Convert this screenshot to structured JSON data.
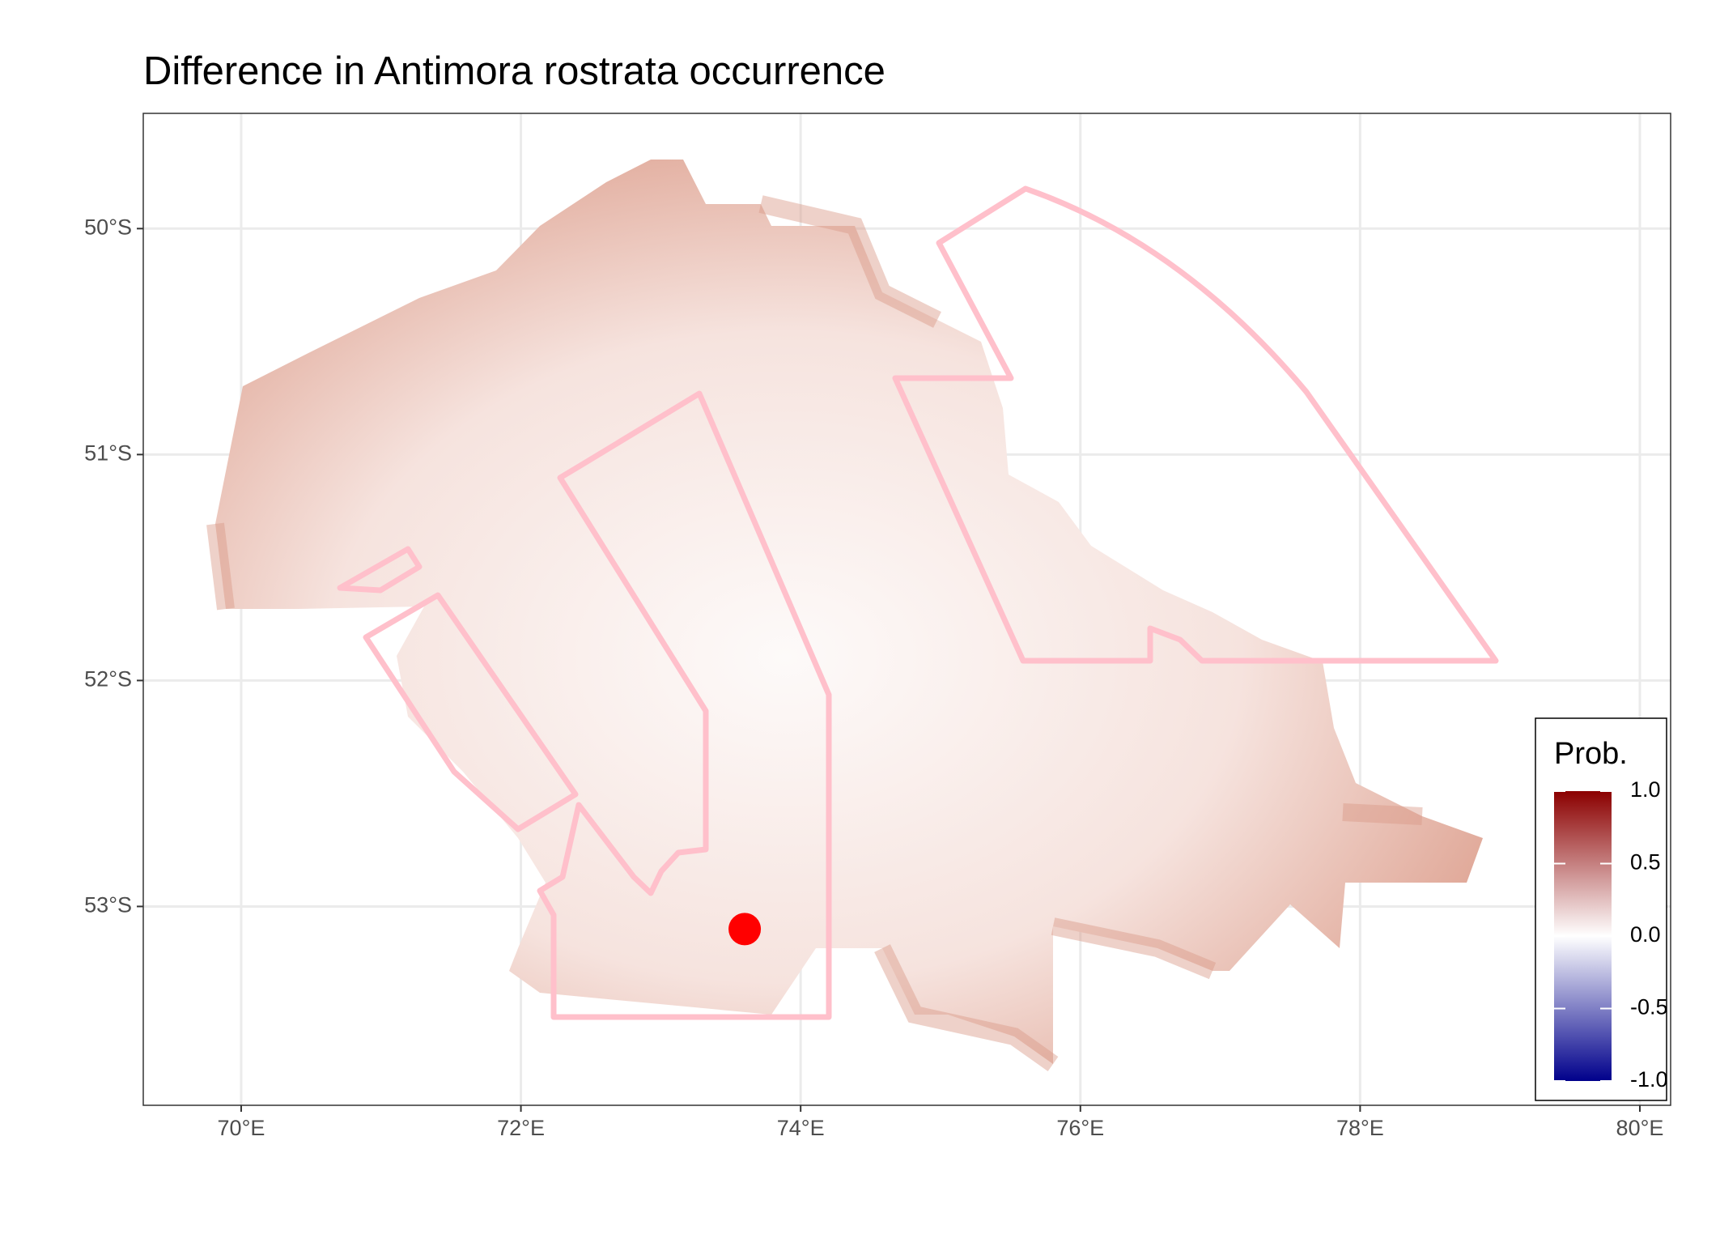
{
  "chart_data": {
    "type": "map",
    "title": "Difference in  Antimora rostrata occurrence",
    "xlim": [
      69.3,
      80.22
    ],
    "ylim": [
      -53.88,
      -49.49
    ],
    "xticks": [
      {
        "value": 70,
        "label": "70°E"
      },
      {
        "value": 72,
        "label": "72°E"
      },
      {
        "value": 74,
        "label": "74°E"
      },
      {
        "value": 76,
        "label": "76°E"
      },
      {
        "value": 78,
        "label": "78°E"
      },
      {
        "value": 80,
        "label": "80°E"
      }
    ],
    "yticks": [
      {
        "value": -50,
        "label": "50°S"
      },
      {
        "value": -51,
        "label": "51°S"
      },
      {
        "value": -52,
        "label": "52°S"
      },
      {
        "value": -53,
        "label": "53°S"
      }
    ],
    "grid": true,
    "points": [
      {
        "lon": 73.6,
        "lat": -53.1,
        "color": "#ff0000"
      }
    ],
    "legend": {
      "title": "Prob.",
      "lim": [
        -1,
        1
      ],
      "low": "#00008b",
      "mid": "#ffffff",
      "high": "#8b0000",
      "ticks": [
        {
          "value": 1,
          "label": "1.0"
        },
        0.5,
        {
          "value": 0,
          "label": "0.0"
        },
        -0.5,
        {
          "value": -1,
          "label": "-1.0"
        }
      ]
    }
  }
}
